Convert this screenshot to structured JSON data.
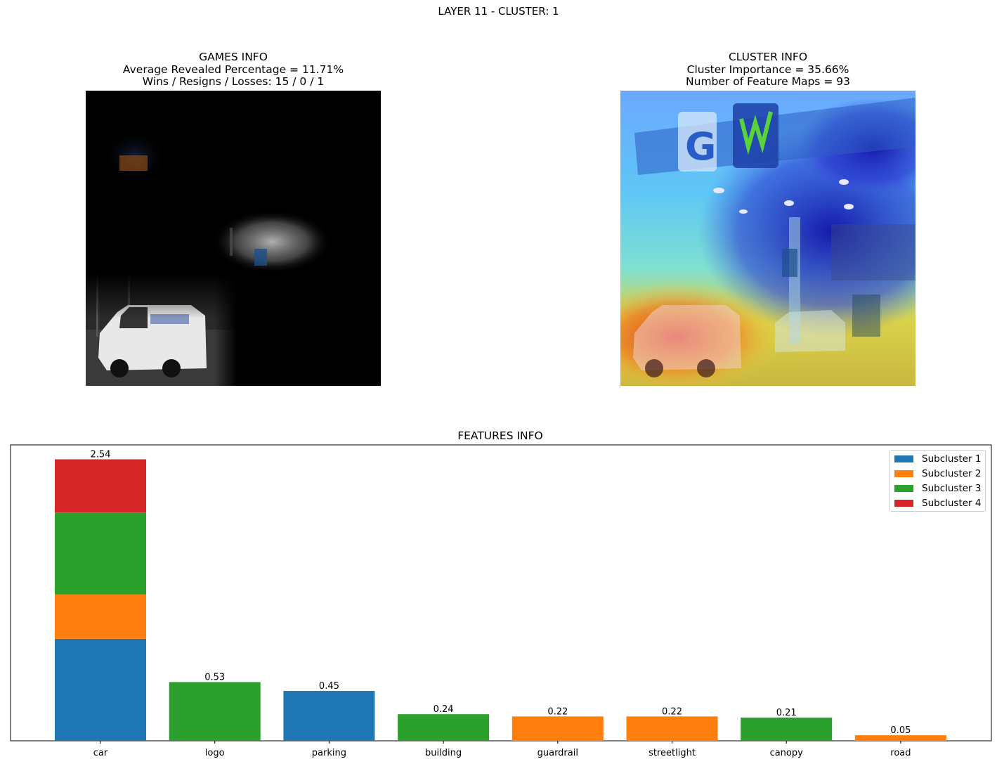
{
  "suptitle": "LAYER 11 - CLUSTER: 1",
  "games_info": {
    "title": "GAMES INFO",
    "line1": "Average Revealed Percentage = 11.71%",
    "line2": "Wins / Resigns / Losses: 15 / 0 / 1"
  },
  "cluster_info": {
    "title": "CLUSTER INFO",
    "line1": "Cluster Importance = 35.66%",
    "line2": "Number of Feature Maps = 93"
  },
  "colors": {
    "subcluster_1": "#1f77b4",
    "subcluster_2": "#ff7f0e",
    "subcluster_3": "#2ca02c",
    "subcluster_4": "#d62728"
  },
  "chart_data": {
    "type": "bar",
    "stacked": true,
    "title": "FEATURES INFO",
    "xlabel": "",
    "ylabel": "",
    "ylim": [
      0,
      2.67
    ],
    "grid": false,
    "legend_position": "top-right",
    "categories": [
      "car",
      "logo",
      "parking",
      "building",
      "guardrail",
      "streetlight",
      "canopy",
      "road"
    ],
    "totals": [
      "2.54",
      "0.53",
      "0.45",
      "0.24",
      "0.22",
      "0.22",
      "0.21",
      "0.05"
    ],
    "series": [
      {
        "name": "Subcluster 1",
        "color": "#1f77b4",
        "values": [
          0.92,
          0,
          0.45,
          0,
          0,
          0,
          0,
          0
        ]
      },
      {
        "name": "Subcluster 2",
        "color": "#ff7f0e",
        "values": [
          0.4,
          0,
          0,
          0,
          0.22,
          0.22,
          0,
          0.05
        ]
      },
      {
        "name": "Subcluster 3",
        "color": "#2ca02c",
        "values": [
          0.74,
          0.53,
          0,
          0.24,
          0,
          0,
          0.21,
          0
        ]
      },
      {
        "name": "Subcluster 4",
        "color": "#d62728",
        "values": [
          0.48,
          0,
          0,
          0,
          0,
          0,
          0,
          0
        ]
      }
    ]
  }
}
